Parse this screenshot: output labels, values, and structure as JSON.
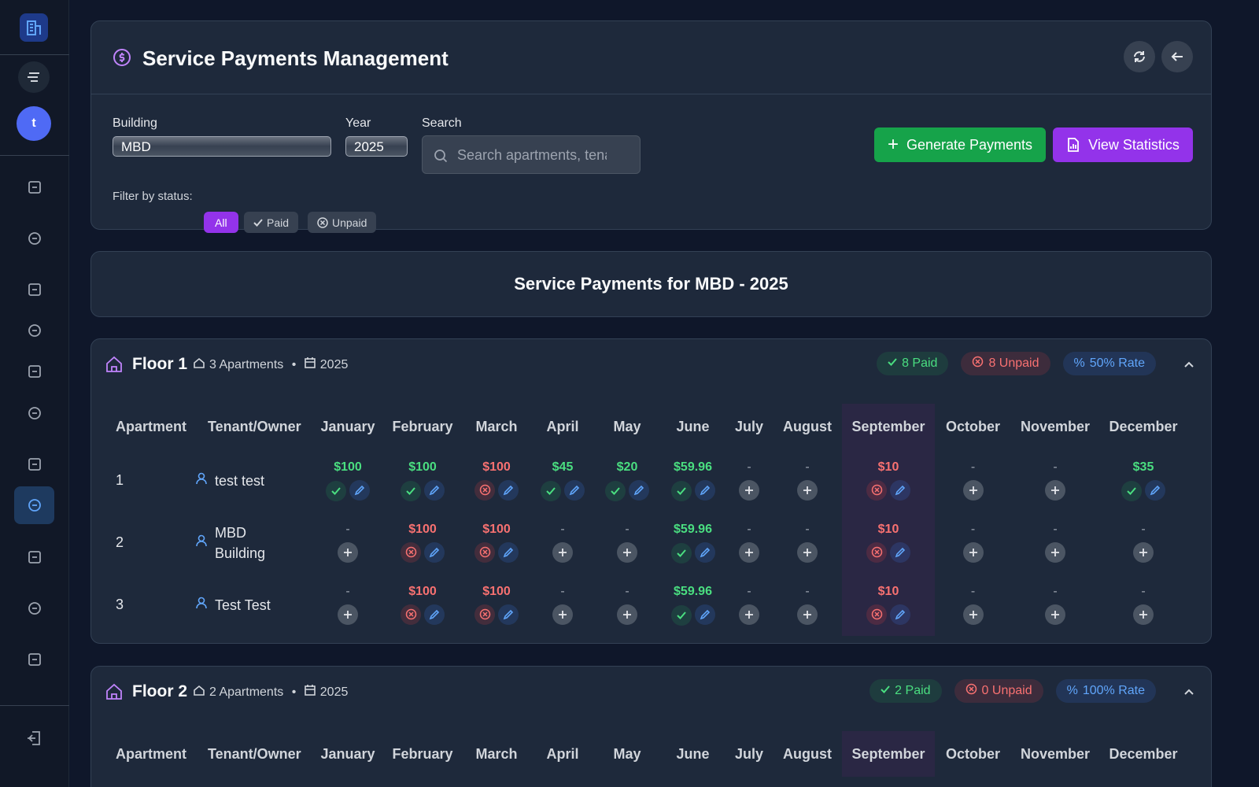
{
  "sidebar": {
    "avatar": "t"
  },
  "header": {
    "title": "Service Payments Management"
  },
  "filters": {
    "building_label": "Building",
    "building_value": "MBD",
    "year_label": "Year",
    "year_value": "2025",
    "search_label": "Search",
    "search_placeholder": "Search apartments, tenants...",
    "status_label": "Filter by status:",
    "status_options": [
      "All",
      "Paid",
      "Unpaid"
    ]
  },
  "actions": [
    "Generate Payments",
    "View Statistics"
  ],
  "section_title": "Service Payments for MBD - 2025",
  "floors": [
    {
      "name": "Floor 1",
      "apartments": "3 Apartments",
      "year": "2025",
      "paid": "8 Paid",
      "unpaid": "8 Unpaid",
      "rate": "50% Rate",
      "highlight_column": 10,
      "columns": [
        "Apartment",
        "Tenant/Owner",
        "January",
        "February",
        "March",
        "April",
        "May",
        "June",
        "July",
        "August",
        "September",
        "October",
        "November",
        "December"
      ],
      "rows": [
        {
          "apartment": "1",
          "tenant": "test test",
          "cells": [
            {
              "amount": "$100",
              "status": "paid"
            },
            {
              "amount": "$100",
              "status": "paid"
            },
            {
              "amount": "$100",
              "status": "unpaid"
            },
            {
              "amount": "$45",
              "status": "paid"
            },
            {
              "amount": "$20",
              "status": "paid"
            },
            {
              "amount": "$59.96",
              "status": "paid"
            },
            {
              "amount": "-"
            },
            {
              "amount": "-"
            },
            {
              "amount": "$10",
              "status": "unpaid"
            },
            {
              "amount": "-"
            },
            {
              "amount": "-"
            },
            {
              "amount": "$35",
              "status": "paid"
            }
          ]
        },
        {
          "apartment": "2",
          "tenant": "MBD Building",
          "cells": [
            {
              "amount": "-"
            },
            {
              "amount": "$100",
              "status": "unpaid"
            },
            {
              "amount": "$100",
              "status": "unpaid"
            },
            {
              "amount": "-"
            },
            {
              "amount": "-"
            },
            {
              "amount": "$59.96",
              "status": "paid"
            },
            {
              "amount": "-"
            },
            {
              "amount": "-"
            },
            {
              "amount": "$10",
              "status": "unpaid"
            },
            {
              "amount": "-"
            },
            {
              "amount": "-"
            },
            {
              "amount": "-"
            }
          ]
        },
        {
          "apartment": "3",
          "tenant": "Test Test",
          "cells": [
            {
              "amount": "-"
            },
            {
              "amount": "$100",
              "status": "unpaid"
            },
            {
              "amount": "$100",
              "status": "unpaid"
            },
            {
              "amount": "-"
            },
            {
              "amount": "-"
            },
            {
              "amount": "$59.96",
              "status": "paid"
            },
            {
              "amount": "-"
            },
            {
              "amount": "-"
            },
            {
              "amount": "$10",
              "status": "unpaid"
            },
            {
              "amount": "-"
            },
            {
              "amount": "-"
            },
            {
              "amount": "-"
            }
          ]
        }
      ]
    },
    {
      "name": "Floor 2",
      "apartments": "2 Apartments",
      "year": "2025",
      "paid": "2 Paid",
      "unpaid": "0 Unpaid",
      "rate": "100% Rate",
      "highlight_column": 10,
      "columns": [
        "Apartment",
        "Tenant/Owner",
        "January",
        "February",
        "March",
        "April",
        "May",
        "June",
        "July",
        "August",
        "September",
        "October",
        "November",
        "December"
      ],
      "rows": []
    }
  ]
}
